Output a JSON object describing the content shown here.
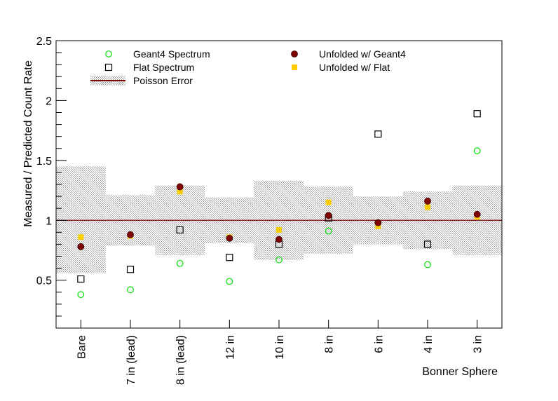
{
  "chart_data": {
    "type": "scatter",
    "title": "",
    "xlabel": "Bonner Sphere",
    "ylabel": "Measured / Predicted Count Rate",
    "ylim": [
      0.1,
      2.5
    ],
    "yticks": [
      0.5,
      1,
      1.5,
      2,
      2.5
    ],
    "ytick_labels": [
      "0.5",
      "1",
      "1.5",
      "2",
      "2.5"
    ],
    "grid": false,
    "legend_position": "top",
    "categories": [
      "Bare",
      "7 in (lead)",
      "8 in (lead)",
      "12 in",
      "10 in",
      "8 in",
      "6 in",
      "4 in",
      "3 in"
    ],
    "reference_line": {
      "y": 1.0,
      "color": "#800000"
    },
    "poisson_band": {
      "name": "Poisson Error",
      "lower": [
        0.56,
        0.79,
        0.71,
        0.81,
        0.67,
        0.72,
        0.8,
        0.76,
        0.71
      ],
      "upper": [
        1.45,
        1.21,
        1.29,
        1.19,
        1.33,
        1.28,
        1.2,
        1.24,
        1.29
      ]
    },
    "series": [
      {
        "name": "Geant4 Spectrum",
        "marker": "open-circle",
        "color": "#00e000",
        "values": [
          0.38,
          0.42,
          0.64,
          0.49,
          0.67,
          0.91,
          0.98,
          0.63,
          1.58
        ]
      },
      {
        "name": "Flat Spectrum",
        "marker": "open-square",
        "color": "#000000",
        "values": [
          0.51,
          0.59,
          0.92,
          0.69,
          0.8,
          1.02,
          1.72,
          0.8,
          1.89
        ]
      },
      {
        "name": "Unfolded w/ Geant4",
        "marker": "filled-circle",
        "color": "#800000",
        "values": [
          0.78,
          0.88,
          1.28,
          0.85,
          0.84,
          1.04,
          0.98,
          1.16,
          1.05
        ]
      },
      {
        "name": "Unfolded w/ Flat",
        "marker": "filled-square",
        "color": "#ffcc00",
        "values": [
          0.86,
          0.87,
          1.24,
          0.86,
          0.92,
          1.15,
          0.95,
          1.11,
          1.03
        ]
      }
    ],
    "legend_entries": [
      "Geant4 Spectrum",
      "Unfolded w/ Geant4",
      "Flat Spectrum",
      "Unfolded w/ Flat",
      "Poisson Error"
    ]
  }
}
